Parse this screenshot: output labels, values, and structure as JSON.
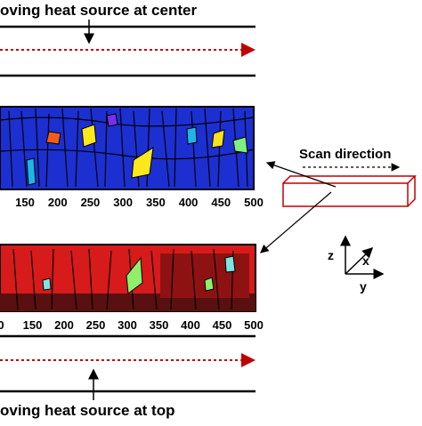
{
  "top_caption": "oving heat source at center",
  "bottom_caption": "oving heat source at top",
  "top_axis_ticks": [
    "150",
    "200",
    "250",
    "300",
    "350",
    "400",
    "450",
    "500"
  ],
  "bottom_axis_ticks": [
    "0",
    "150",
    "200",
    "250",
    "300",
    "350",
    "400",
    "450",
    "500"
  ],
  "scan_direction": "Scan direction",
  "axes": {
    "z": "z",
    "x": "x",
    "y": "y"
  }
}
